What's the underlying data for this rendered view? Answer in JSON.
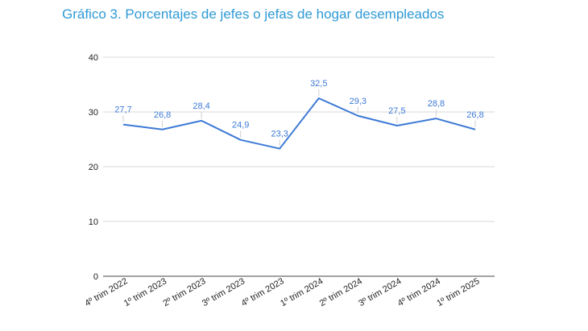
{
  "title": "Gráfico 3. Porcentajes de jefes o jefas de hogar desempleados",
  "chart_data": {
    "type": "line",
    "title": "Gráfico 3. Porcentajes de jefes o jefas de hogar desempleados",
    "categories": [
      "4º trim 2022",
      "1º trim 2023",
      "2º trim 2023",
      "3º trim 2023",
      "4º trim 2023",
      "1º trim 2024",
      "2º trim 2024",
      "3º trim 2024",
      "4º trim 2024",
      "1º trim 2025"
    ],
    "series": [
      {
        "values": [
          27.7,
          26.8,
          28.4,
          24.9,
          23.3,
          32.5,
          29.3,
          27.5,
          28.8,
          26.8
        ],
        "labels": [
          "27,7",
          "26,8",
          "28,4",
          "24,9",
          "23,3",
          "32,5",
          "29,3",
          "27,5",
          "28,8",
          "26,8"
        ]
      }
    ],
    "y_ticks": [
      "0",
      "10",
      "20",
      "30",
      "40"
    ],
    "ylim": [
      0,
      40
    ],
    "grid": true,
    "line_color": "#3d7ad6",
    "title_color": "#2e9ad6"
  }
}
